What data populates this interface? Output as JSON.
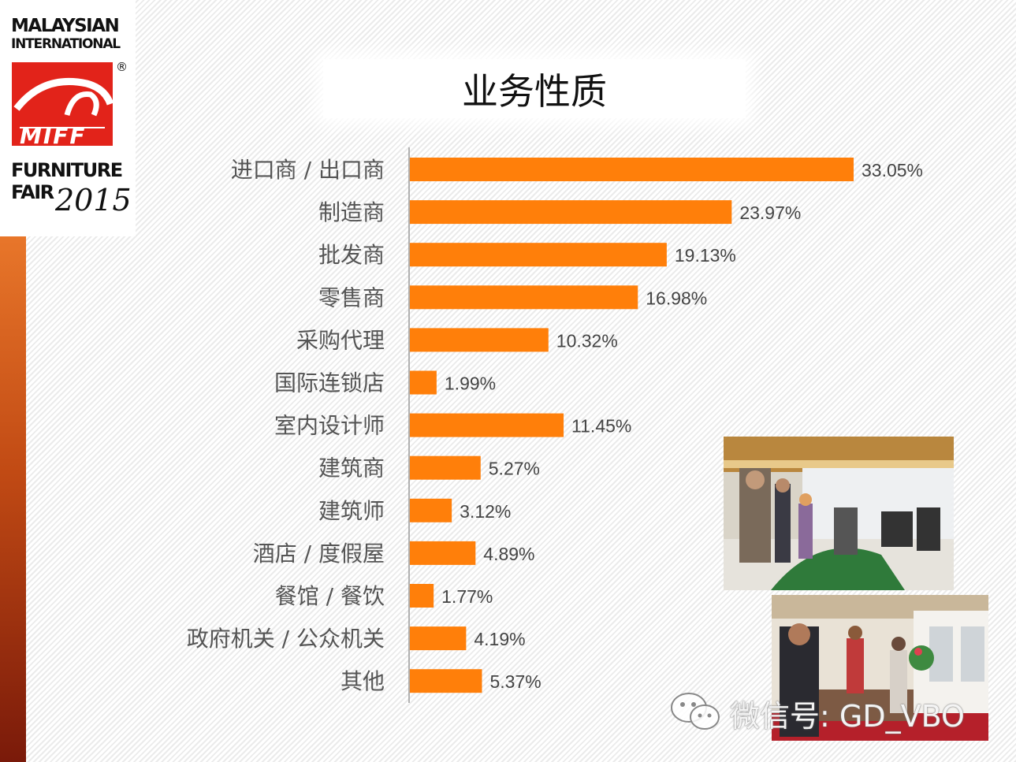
{
  "logo": {
    "line1": "MALAYSIAN",
    "line2": "INTERNATIONAL",
    "mark_text": "MIFF",
    "registered": "®",
    "furniture": "FURNITURE",
    "fair": "FAIR",
    "year": "2015",
    "brand_color": "#e2231a"
  },
  "watermark": {
    "text": "微信号: GD_VBO"
  },
  "chart_data": {
    "type": "bar",
    "orientation": "horizontal",
    "title": "业务性质",
    "categories": [
      "进口商 / 出口商",
      "制造商",
      "批发商",
      "零售商",
      "采购代理",
      "国际连锁店",
      "室内设计师",
      "建筑商",
      "建筑师",
      "酒店 / 度假屋",
      "餐馆 / 餐饮",
      "政府机关 / 公众机关",
      "其他"
    ],
    "values": [
      33.05,
      23.97,
      19.13,
      16.98,
      10.32,
      1.99,
      11.45,
      5.27,
      3.12,
      4.89,
      1.77,
      4.19,
      5.37
    ],
    "value_labels": [
      "33.05%",
      "23.97%",
      "19.13%",
      "16.98%",
      "10.32%",
      "1.99%",
      "11.45%",
      "5.27%",
      "3.12%",
      "4.89%",
      "1.77%",
      "4.19%",
      "5.37%"
    ],
    "unit": "%",
    "xlim": [
      0,
      33.05
    ],
    "bar_color": "#ff7f0a",
    "grid": false,
    "legend": "none"
  }
}
